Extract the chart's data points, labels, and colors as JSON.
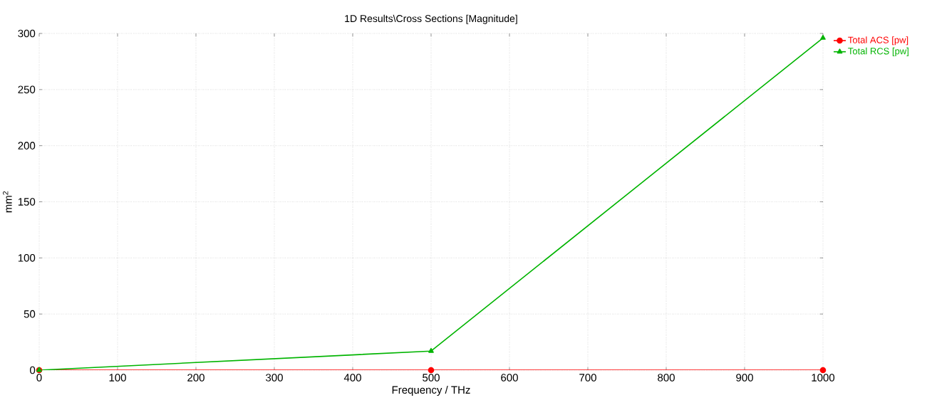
{
  "chart_data": {
    "type": "line",
    "title": "1D Results\\Cross Sections [Magnitude]",
    "xlabel": "Frequency / THz",
    "ylabel": "mm$^{2}$",
    "x": [
      0,
      500,
      1000
    ],
    "series": [
      {
        "name": "Total ACS [pw]",
        "color": "#ff0000",
        "values": [
          0,
          0,
          0
        ],
        "marker": "circle"
      },
      {
        "name": "Total RCS [pw]",
        "color": "#00b400",
        "values": [
          0,
          17,
          296
        ],
        "marker": "triangle"
      }
    ],
    "xlim": [
      0,
      1000
    ],
    "ylim": [
      0,
      300
    ],
    "xticks": [
      0,
      100,
      200,
      300,
      400,
      500,
      600,
      700,
      800,
      900,
      1000
    ],
    "yticks": [
      0,
      50,
      100,
      150,
      200,
      250,
      300
    ],
    "grid": true,
    "legend": "top right",
    "line_style": "solid"
  }
}
